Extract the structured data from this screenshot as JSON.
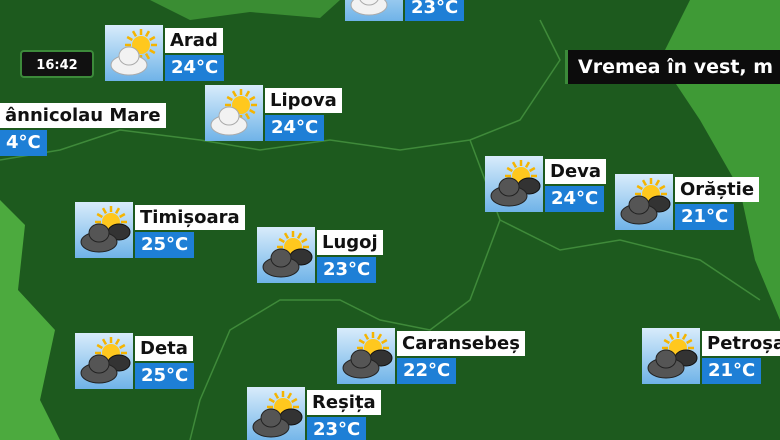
{
  "clock": "16:42",
  "banner": "Vremea în vest, m",
  "cities": [
    {
      "temp": "23°C"
    },
    {
      "name": "Arad",
      "temp": "24°C"
    },
    {
      "name": "ânnicolau Mare",
      "temp": "4°C"
    },
    {
      "name": "Lipova",
      "temp": "24°C"
    },
    {
      "name": "Deva",
      "temp": "24°C"
    },
    {
      "name": "Orăștie",
      "temp": "21°C"
    },
    {
      "name": "Timișoara",
      "temp": "25°C"
    },
    {
      "name": "Lugoj",
      "temp": "23°C"
    },
    {
      "name": "Deta",
      "temp": "25°C"
    },
    {
      "name": "Caransebeș",
      "temp": "22°C"
    },
    {
      "name": "Petroșa",
      "temp": "21°C"
    },
    {
      "name": "Reșița",
      "temp": "23°C"
    }
  ]
}
